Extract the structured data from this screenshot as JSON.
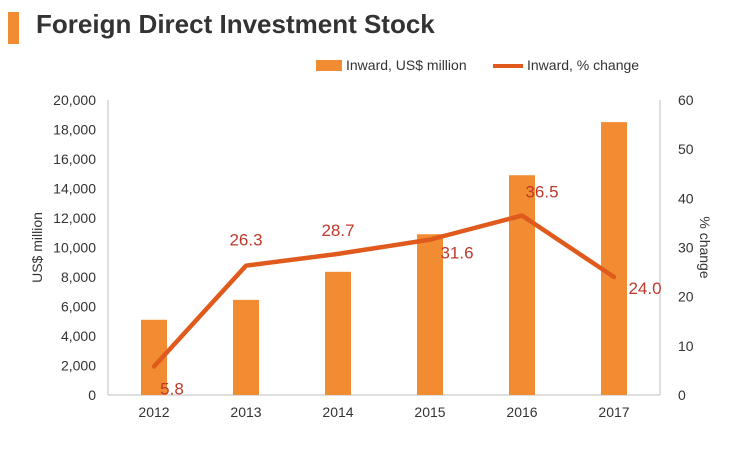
{
  "title": "Foreign Direct Investment Stock",
  "colors": {
    "accent": "#f28c32",
    "bar": "#f28c32",
    "line": "#e05a1e",
    "data_label": "#c0392b",
    "title": "#333333"
  },
  "chart_data": {
    "type": "bar",
    "categories": [
      "2012",
      "2013",
      "2014",
      "2015",
      "2016",
      "2017"
    ],
    "series": [
      {
        "name": "Inward, US$ million",
        "type": "bar",
        "axis": "left",
        "values": [
          5100,
          6450,
          8350,
          10900,
          14900,
          18500
        ]
      },
      {
        "name": "Inward, % change",
        "type": "line",
        "axis": "right",
        "values": [
          5.8,
          26.3,
          28.7,
          31.6,
          36.5,
          24.0
        ],
        "labels": [
          "5.8",
          "26.3",
          "28.7",
          "31.6",
          "36.5",
          "24.0"
        ]
      }
    ],
    "ylabel": "US$ million",
    "y2label": "% change",
    "ylim": [
      0,
      20000
    ],
    "y2lim": [
      0,
      60
    ],
    "yticks": [
      "0",
      "2,000",
      "4,000",
      "6,000",
      "8,000",
      "10,000",
      "12,000",
      "14,000",
      "16,000",
      "18,000",
      "20,000"
    ],
    "y2ticks": [
      "0",
      "10",
      "20",
      "30",
      "40",
      "50",
      "60"
    ],
    "grid": false,
    "legend": "top-right"
  }
}
